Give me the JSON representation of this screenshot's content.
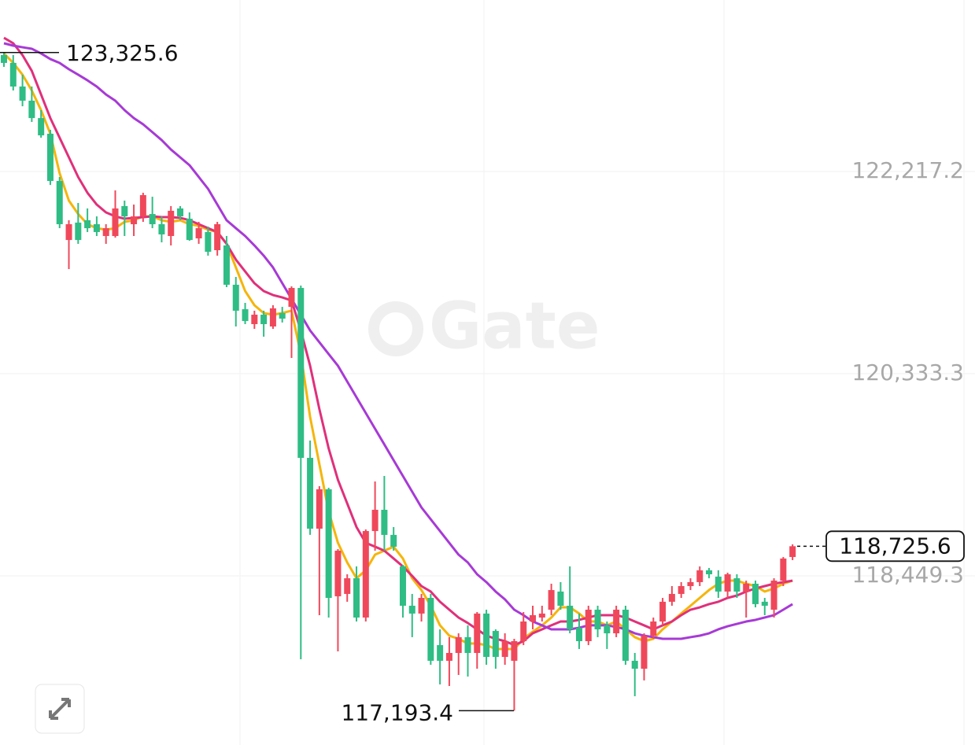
{
  "chart_data": {
    "type": "candlestick",
    "ylim": [
      116873.3,
      123815.2
    ],
    "yticks": [
      {
        "value": 122217.2,
        "label": "122,217.2"
      },
      {
        "value": 120333.3,
        "label": "120,333.3"
      },
      {
        "value": 118449.3,
        "label": "118,449.3"
      }
    ],
    "grid": true,
    "up_color": "#f0485b",
    "down_color": "#2fbd85",
    "watermark": "Gate",
    "open": [
      123302,
      123229,
      123009,
      122877,
      122715,
      122569,
      122129,
      121579,
      121741,
      121763,
      121726,
      121616,
      121616,
      121895,
      121726,
      121799,
      121821,
      121726,
      121616,
      121873,
      121777,
      121594,
      121653,
      121484,
      121528,
      121162,
      120934,
      120795,
      120883,
      120773,
      120898,
      120956,
      121132,
      119549,
      118889,
      119256,
      118259,
      118281,
      118427,
      118061,
      118867,
      119065,
      118831,
      118537,
      118171,
      118098,
      118244,
      117804,
      117658,
      117731,
      117878,
      117731,
      118098,
      117936,
      117694,
      117658,
      117841,
      118024,
      118061,
      118134,
      118303,
      118171,
      117966,
      117841,
      118134,
      117988,
      117914,
      118134,
      117658,
      117584,
      117892,
      118024,
      118208,
      118281,
      118354,
      118391,
      118501,
      118442,
      118303,
      118427,
      118303,
      118376,
      118208,
      118134,
      118405,
      118625
    ],
    "high": [
      123325.6,
      123302,
      123119,
      123009,
      122789,
      122606,
      122166,
      121763,
      121924,
      121873,
      121799,
      121726,
      122041,
      121946,
      121909,
      122019,
      121982,
      121799,
      121895,
      121895,
      121836,
      121748,
      121704,
      121748,
      121616,
      121235,
      120993,
      120920,
      120920,
      120971,
      120956,
      121147,
      121154,
      119710,
      119285,
      119270,
      118699,
      118464,
      118537,
      118882,
      119329,
      119380,
      118904,
      118552,
      118281,
      118281,
      118281,
      117951,
      117878,
      117914,
      117988,
      118112,
      118134,
      117951,
      117914,
      117863,
      118112,
      118171,
      118171,
      118376,
      118391,
      118537,
      118098,
      118171,
      118171,
      118024,
      118171,
      118171,
      117731,
      117914,
      118061,
      118244,
      118354,
      118391,
      118427,
      118537,
      118523,
      118501,
      118479,
      118464,
      118405,
      118405,
      118244,
      118427,
      118625,
      118743
    ],
    "low": [
      123192,
      122972,
      122825,
      122679,
      122532,
      122092,
      121689,
      121308,
      121543,
      121653,
      121616,
      121543,
      121601,
      121616,
      121616,
      121748,
      121689,
      121557,
      121528,
      121763,
      121572,
      121543,
      121433,
      121433,
      121140,
      120773,
      120795,
      120751,
      120678,
      120751,
      120810,
      120480,
      117672,
      118831,
      118083,
      118061,
      117746,
      118208,
      118024,
      118024,
      118684,
      118684,
      118684,
      118061,
      117878,
      118024,
      117621,
      117438,
      117423,
      117526,
      117511,
      117584,
      117621,
      117584,
      117621,
      117193.4,
      117804,
      117951,
      118024,
      118083,
      118134,
      117914,
      117768,
      117804,
      117878,
      117768,
      117878,
      117621,
      117328,
      117475,
      117863,
      117988,
      118171,
      118244,
      118317,
      118354,
      118427,
      118244,
      118244,
      118244,
      118061,
      118156,
      118083,
      118061,
      118354,
      118596
    ],
    "close": [
      123229,
      123009,
      122877,
      122715,
      122554,
      122129,
      121726,
      121726,
      121579,
      121689,
      121653,
      121689,
      121873,
      121799,
      121799,
      121997,
      121726,
      121631,
      121851,
      121799,
      121579,
      121689,
      121469,
      121726,
      121162,
      120920,
      120824,
      120883,
      120795,
      120942,
      120846,
      121132,
      119549,
      118889,
      119256,
      118244,
      118684,
      118427,
      118061,
      118867,
      119065,
      118831,
      118721,
      118171,
      118098,
      118244,
      117658,
      117658,
      117731,
      117878,
      117731,
      118098,
      117694,
      117694,
      117841,
      117841,
      118024,
      118083,
      118098,
      118317,
      118171,
      117951,
      117841,
      118134,
      117951,
      117914,
      118134,
      117658,
      117584,
      117892,
      118024,
      118208,
      118281,
      118354,
      118391,
      118501,
      118464,
      118303,
      118464,
      118303,
      118376,
      118186,
      118171,
      118405,
      118611,
      118725.6
    ],
    "lines": [
      {
        "color": "#f5b50a",
        "values": [
          123317,
          123229,
          123119,
          122972,
          122789,
          122569,
          122202,
          121946,
          121821,
          121726,
          121689,
          121675,
          121689,
          121748,
          121763,
          121799,
          121799,
          121763,
          121748,
          121763,
          121726,
          121711,
          121675,
          121653,
          121543,
          121323,
          121103,
          120971,
          120898,
          120883,
          120898,
          120920,
          120516,
          119930,
          119490,
          119050,
          118757,
          118574,
          118427,
          118501,
          118647,
          118684,
          118721,
          118611,
          118427,
          118317,
          118171,
          117988,
          117892,
          117863,
          117819,
          117819,
          117804,
          117768,
          117768,
          117768,
          117863,
          117929,
          117988,
          118061,
          118156,
          118156,
          118098,
          118024,
          118024,
          117988,
          118024,
          117951,
          117878,
          117841,
          117863,
          117951,
          118024,
          118098,
          118171,
          118244,
          118317,
          118376,
          118405,
          118405,
          118376,
          118354,
          118303,
          118332,
          118376,
          118405
        ]
      },
      {
        "color": "#e0307a",
        "values": [
          123463,
          123412,
          123302,
          123155,
          122935,
          122715,
          122532,
          122349,
          122166,
          122019,
          121909,
          121836,
          121799,
          121777,
          121785,
          121792,
          121799,
          121792,
          121792,
          121785,
          121763,
          121726,
          121689,
          121653,
          121543,
          121396,
          121286,
          121176,
          121103,
          121066,
          121044,
          121015,
          120736,
          120407,
          120003,
          119637,
          119344,
          119124,
          118904,
          118757,
          118721,
          118684,
          118611,
          118537,
          118449,
          118354,
          118303,
          118208,
          118134,
          118061,
          118010,
          117951,
          117892,
          117863,
          117841,
          117804,
          117841,
          117914,
          117951,
          117988,
          118024,
          118024,
          118039,
          118061,
          118083,
          118083,
          118083,
          118061,
          118024,
          117988,
          117951,
          117988,
          118024,
          118083,
          118134,
          118156,
          118186,
          118208,
          118244,
          118266,
          118303,
          118332,
          118354,
          118376,
          118391,
          118405
        ]
      },
      {
        "color": "#a73ad6",
        "values": [
          123412,
          123390,
          123375,
          123361,
          123317,
          123265,
          123229,
          123170,
          123119,
          123067,
          123009,
          122935,
          122877,
          122789,
          122715,
          122657,
          122584,
          122510,
          122422,
          122349,
          122276,
          122166,
          122056,
          121909,
          121763,
          121689,
          121616,
          121528,
          121433,
          121323,
          121176,
          121030,
          120883,
          120736,
          120626,
          120516,
          120407,
          120260,
          120113,
          119967,
          119820,
          119674,
          119527,
          119380,
          119234,
          119087,
          118977,
          118867,
          118757,
          118647,
          118574,
          118464,
          118391,
          118303,
          118230,
          118134,
          118083,
          118024,
          117988,
          117951,
          117951,
          117951,
          117966,
          117988,
          117988,
          117988,
          117973,
          117951,
          117914,
          117892,
          117878,
          117863,
          117863,
          117863,
          117878,
          117892,
          117914,
          117951,
          117980,
          118002,
          118024,
          118039,
          118061,
          118083,
          118134,
          118186
        ]
      }
    ],
    "annotations": {
      "high": {
        "value": 123325.6,
        "label": "123,325.6"
      },
      "low": {
        "value": 117193.4,
        "label": "117,193.4"
      },
      "last": {
        "value": 118725.6,
        "label": "118,725.6"
      }
    }
  }
}
